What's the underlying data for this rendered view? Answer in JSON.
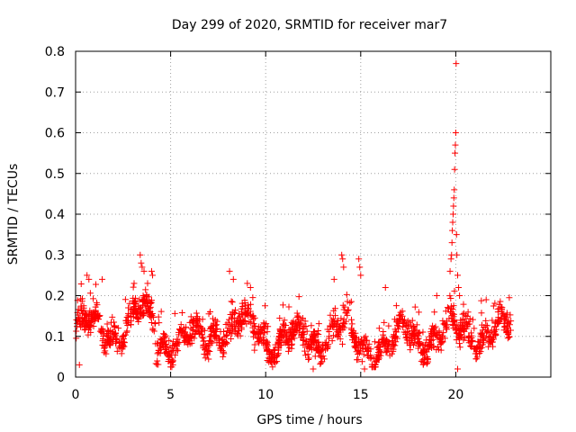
{
  "chart_data": {
    "type": "scatter",
    "title": "Day 299 of 2020, SRMTID for receiver mar7",
    "xlabel": "GPS time / hours",
    "ylabel": "SRMTID / TECUs",
    "xlim": [
      0,
      25
    ],
    "ylim": [
      0,
      0.8
    ],
    "xticks": [
      0,
      5,
      10,
      15,
      20
    ],
    "yticks": [
      0,
      0.1,
      0.2,
      0.3,
      0.4,
      0.5,
      0.6,
      0.7,
      0.8
    ],
    "xtick_labels": [
      "0",
      "5",
      "10",
      "15",
      "20"
    ],
    "ytick_labels": [
      "0",
      "0.1",
      "0.2",
      "0.3",
      "0.4",
      "0.5",
      "0.6",
      "0.7",
      "0.8"
    ],
    "grid": true,
    "marker": "+",
    "color": "#ff0000",
    "x_data_end": 22.9,
    "baseline_level_segments": [
      {
        "x_start": 0.0,
        "x_end": 3.0,
        "level": 0.12
      },
      {
        "x_start": 3.0,
        "x_end": 4.2,
        "level": 0.15
      },
      {
        "x_start": 4.2,
        "x_end": 7.0,
        "level": 0.09
      },
      {
        "x_start": 7.0,
        "x_end": 10.0,
        "level": 0.12
      },
      {
        "x_start": 10.0,
        "x_end": 13.0,
        "level": 0.09
      },
      {
        "x_start": 13.0,
        "x_end": 14.5,
        "level": 0.12
      },
      {
        "x_start": 14.5,
        "x_end": 17.0,
        "level": 0.08
      },
      {
        "x_start": 17.0,
        "x_end": 19.5,
        "level": 0.1
      },
      {
        "x_start": 19.5,
        "x_end": 22.9,
        "level": 0.11
      }
    ],
    "notable_points": [
      {
        "x": 0.6,
        "y": 0.25
      },
      {
        "x": 0.7,
        "y": 0.24
      },
      {
        "x": 1.4,
        "y": 0.24
      },
      {
        "x": 3.4,
        "y": 0.3
      },
      {
        "x": 3.45,
        "y": 0.28
      },
      {
        "x": 3.5,
        "y": 0.27
      },
      {
        "x": 3.6,
        "y": 0.26
      },
      {
        "x": 4.0,
        "y": 0.26
      },
      {
        "x": 4.05,
        "y": 0.25
      },
      {
        "x": 8.1,
        "y": 0.26
      },
      {
        "x": 8.3,
        "y": 0.24
      },
      {
        "x": 9.2,
        "y": 0.22
      },
      {
        "x": 13.6,
        "y": 0.24
      },
      {
        "x": 14.0,
        "y": 0.3
      },
      {
        "x": 14.05,
        "y": 0.29
      },
      {
        "x": 14.1,
        "y": 0.27
      },
      {
        "x": 14.9,
        "y": 0.29
      },
      {
        "x": 14.95,
        "y": 0.27
      },
      {
        "x": 15.0,
        "y": 0.25
      },
      {
        "x": 16.3,
        "y": 0.22
      },
      {
        "x": 19.0,
        "y": 0.2
      },
      {
        "x": 21.6,
        "y": 0.19
      }
    ],
    "spike_points": [
      {
        "x": 19.75,
        "y": 0.29
      },
      {
        "x": 19.78,
        "y": 0.3
      },
      {
        "x": 19.8,
        "y": 0.33
      },
      {
        "x": 19.82,
        "y": 0.36
      },
      {
        "x": 19.84,
        "y": 0.38
      },
      {
        "x": 19.86,
        "y": 0.4
      },
      {
        "x": 19.88,
        "y": 0.42
      },
      {
        "x": 19.9,
        "y": 0.44
      },
      {
        "x": 19.92,
        "y": 0.46
      },
      {
        "x": 19.94,
        "y": 0.51
      },
      {
        "x": 19.96,
        "y": 0.55
      },
      {
        "x": 19.98,
        "y": 0.57
      },
      {
        "x": 20.0,
        "y": 0.6
      },
      {
        "x": 20.02,
        "y": 0.77
      },
      {
        "x": 20.04,
        "y": 0.35
      },
      {
        "x": 20.06,
        "y": 0.3
      },
      {
        "x": 20.1,
        "y": 0.25
      },
      {
        "x": 20.15,
        "y": 0.22
      },
      {
        "x": 19.7,
        "y": 0.26
      },
      {
        "x": 20.2,
        "y": 0.2
      }
    ],
    "low_outliers": [
      {
        "x": 15.2,
        "y": 0.02
      },
      {
        "x": 20.1,
        "y": 0.02
      },
      {
        "x": 0.2,
        "y": 0.03
      },
      {
        "x": 12.5,
        "y": 0.02
      }
    ]
  }
}
